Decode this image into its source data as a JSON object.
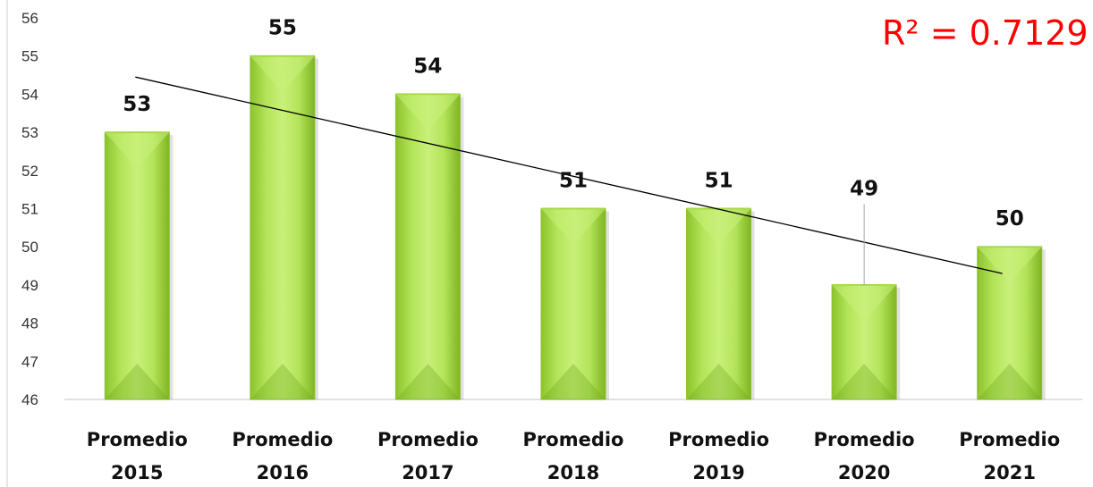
{
  "chart_data": {
    "type": "bar",
    "categories": [
      [
        "Promedio",
        "2015"
      ],
      [
        "Promedio",
        "2016"
      ],
      [
        "Promedio",
        "2017"
      ],
      [
        "Promedio",
        "2018"
      ],
      [
        "Promedio",
        "2019"
      ],
      [
        "Promedio",
        "2020"
      ],
      [
        "Promedio",
        "2021"
      ]
    ],
    "values": [
      53,
      55,
      54,
      51,
      51,
      49,
      50
    ],
    "data_labels": [
      "53",
      "55",
      "54",
      "51",
      "51",
      "49",
      "50"
    ],
    "ylim": [
      46,
      56
    ],
    "yticks": [
      "46",
      "47",
      "48",
      "49",
      "50",
      "51",
      "52",
      "53",
      "54",
      "55",
      "56"
    ],
    "trendline": {
      "type": "linear",
      "start": 54.45,
      "end": 49.3,
      "annotation": "R² = 0.7129"
    },
    "colors": {
      "bar_light": "#c9f07a",
      "bar_mid": "#a4d940",
      "bar_dark": "#6fa81c",
      "trendline": "#000000",
      "annotation": "#ff0000"
    },
    "grid": false,
    "legend": "none"
  }
}
